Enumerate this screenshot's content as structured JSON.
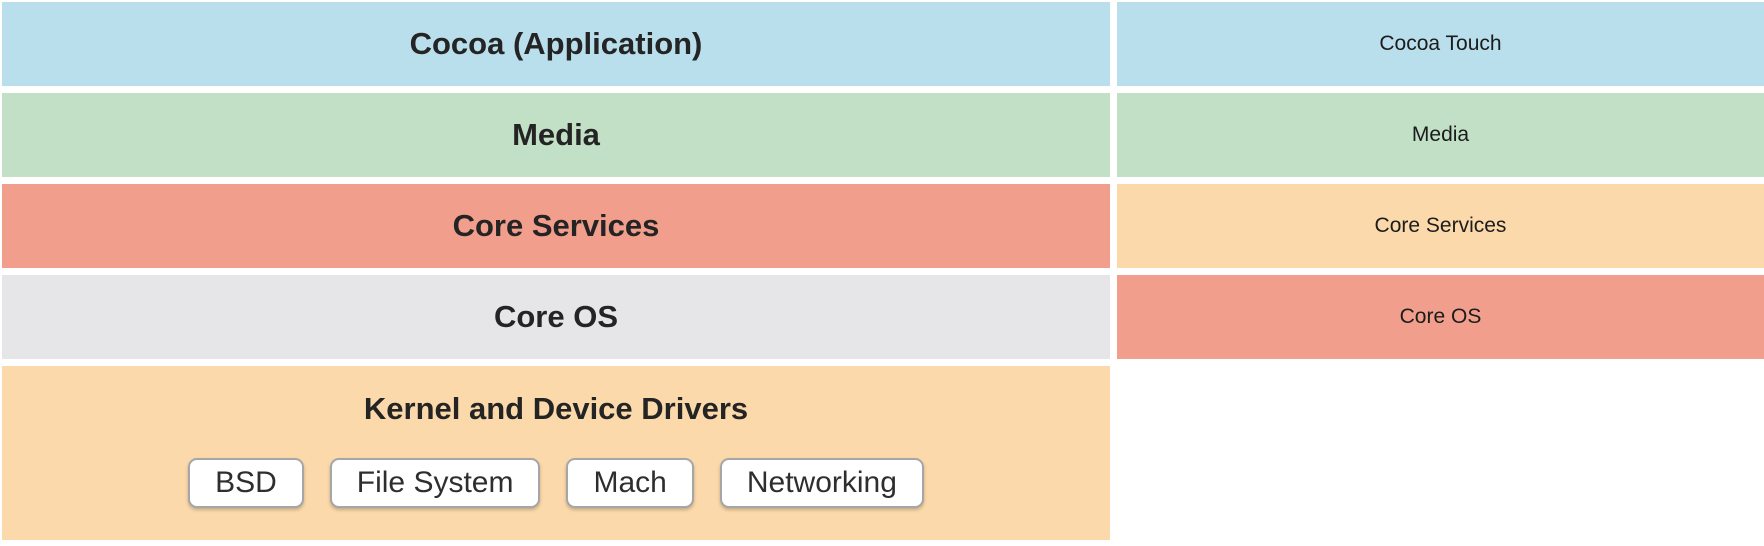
{
  "diagram": {
    "description": "Two side-by-side layered architecture stacks",
    "colors": {
      "light_blue": "#b9dfec",
      "light_green": "#c2e0c6",
      "salmon": "#f29e8c",
      "light_gray": "#e6e6e9",
      "peach": "#fbd9ab",
      "box_border": "#a6a6a6",
      "bold_text": "#242424",
      "regular_text": "#1c1c1c"
    },
    "left_stack": {
      "layers": [
        {
          "label": "Cocoa (Application)",
          "color": "#b9dfec"
        },
        {
          "label": "Media",
          "color": "#c2e0c6"
        },
        {
          "label": "Core Services",
          "color": "#f29e8c"
        },
        {
          "label": "Core OS",
          "color": "#e6e6e9"
        }
      ],
      "kernel_layer": {
        "label": "Kernel and Device Drivers",
        "color": "#fbd9ab",
        "components": [
          "BSD",
          "File System",
          "Mach",
          "Networking"
        ]
      }
    },
    "right_stack": {
      "layers": [
        {
          "label": "Cocoa Touch",
          "color": "#b9dfec"
        },
        {
          "label": "Media",
          "color": "#c2e0c6"
        },
        {
          "label": "Core Services",
          "color": "#fbd9ab"
        },
        {
          "label": "Core OS",
          "color": "#f29e8c"
        }
      ]
    }
  }
}
